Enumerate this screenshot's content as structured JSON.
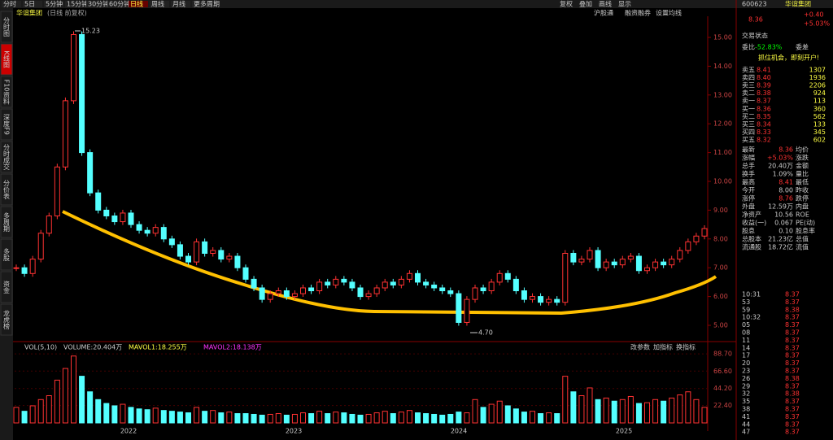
{
  "toolbar": {
    "periods": [
      "分时",
      "5日",
      "5分钟",
      "15分钟",
      "30分钟",
      "60分钟",
      "日线",
      "周线",
      "月线",
      "更多周期"
    ],
    "tools": [
      "复权",
      "叠加",
      "画线",
      "显示"
    ]
  },
  "sidebar": [
    "分时图",
    "K线图",
    "F10资料",
    "深度F9",
    "分时成交",
    "分价表",
    "多周期",
    "多股",
    "资金",
    "龙虎榜"
  ],
  "chart_header": {
    "name": "华谊集团",
    "mode": "(日线 前复权)",
    "buttons": [
      "沪股通",
      "融资融券",
      "设置均线"
    ]
  },
  "chart_data": {
    "type": "candlestick",
    "closes": [
      7.0,
      6.8,
      7.3,
      8.2,
      8.8,
      10.5,
      12.8,
      15.1,
      11.0,
      9.6,
      9.0,
      8.8,
      8.6,
      8.9,
      8.5,
      8.3,
      8.2,
      8.4,
      8.0,
      7.8,
      7.4,
      7.2,
      7.9,
      7.5,
      7.6,
      7.3,
      7.4,
      7.0,
      6.6,
      6.3,
      5.9,
      6.1,
      6.2,
      6.0,
      6.1,
      6.3,
      6.2,
      6.5,
      6.4,
      6.6,
      6.5,
      6.3,
      6.0,
      6.1,
      6.3,
      6.5,
      6.4,
      6.6,
      6.8,
      6.5,
      6.4,
      6.3,
      6.2,
      6.1,
      5.1,
      5.9,
      6.3,
      6.2,
      6.5,
      6.8,
      6.6,
      6.2,
      5.9,
      6.0,
      5.8,
      5.9,
      5.8,
      7.5,
      7.2,
      7.3,
      7.6,
      7.0,
      7.2,
      7.1,
      7.3,
      7.4,
      6.9,
      7.0,
      7.2,
      7.1,
      7.3,
      7.6,
      7.9,
      8.1,
      8.36
    ],
    "volumes": [
      20,
      15,
      22,
      30,
      35,
      55,
      70,
      86,
      60,
      40,
      30,
      25,
      22,
      24,
      20,
      18,
      17,
      19,
      16,
      15,
      14,
      13,
      20,
      15,
      16,
      13,
      14,
      12,
      12,
      11,
      10,
      11,
      12,
      10,
      11,
      13,
      12,
      15,
      12,
      14,
      13,
      11,
      10,
      11,
      13,
      15,
      12,
      14,
      16,
      13,
      12,
      11,
      10,
      11,
      14,
      13,
      30,
      20,
      24,
      28,
      22,
      18,
      14,
      15,
      12,
      13,
      12,
      60,
      40,
      35,
      45,
      30,
      32,
      28,
      30,
      34,
      25,
      26,
      30,
      28,
      32,
      36,
      40,
      30,
      20
    ],
    "ylim": [
      4.6,
      15.4
    ],
    "yticks": [
      {
        "value": 5,
        "label": "5.00"
      },
      {
        "value": 6,
        "label": "6.00"
      },
      {
        "value": 7,
        "label": "7.00"
      },
      {
        "value": 8,
        "label": "8.00"
      },
      {
        "value": 9,
        "label": "9.00"
      },
      {
        "value": 10,
        "label": "10.00"
      },
      {
        "value": 11,
        "label": "11.00"
      },
      {
        "value": 12,
        "label": "12.00"
      },
      {
        "value": 13,
        "label": "13.00"
      },
      {
        "value": 14,
        "label": "14.00"
      },
      {
        "value": 15,
        "label": "15.00"
      }
    ],
    "vlim": [
      0,
      92
    ],
    "vticks": [
      {
        "value": 22.4,
        "label": "22.40"
      },
      {
        "value": 44.2,
        "label": "44.20"
      },
      {
        "value": 66.6,
        "label": "66.60"
      },
      {
        "value": 88.7,
        "label": "88.70"
      }
    ],
    "years": [
      "2022",
      "2023",
      "2024",
      "2025"
    ],
    "high_label": "15.23",
    "low_label": "4.70",
    "vol_legend": [
      "VOL(5,10)",
      "VOLUME:20.404万",
      "MAVOL1:18.255万",
      "MAVOL2:18.138万"
    ],
    "vol_buttons": [
      "改参数",
      "加指标",
      "换指标"
    ]
  },
  "quote": {
    "code": "600623",
    "name": "华谊集团",
    "price": "8.36",
    "change": "+0.40",
    "pct": "+5.03%",
    "status": "交易状态",
    "ratio_label": "委比",
    "ratio": "-52.83%",
    "diff_label": "委差",
    "promo": "抓住机会，即刻开户!"
  },
  "sells": [
    [
      "卖五",
      "8.41",
      "1307"
    ],
    [
      "卖四",
      "8.40",
      "1936"
    ],
    [
      "卖三",
      "8.39",
      "2206"
    ],
    [
      "卖二",
      "8.38",
      "924"
    ],
    [
      "卖一",
      "8.37",
      "113"
    ]
  ],
  "buys": [
    [
      "买一",
      "8.36",
      "360"
    ],
    [
      "买二",
      "8.35",
      "562"
    ],
    [
      "买三",
      "8.34",
      "133"
    ],
    [
      "买四",
      "8.33",
      "345"
    ],
    [
      "买五",
      "8.32",
      "602"
    ]
  ],
  "stats": [
    [
      "最新",
      "8.36",
      "均价"
    ],
    [
      "涨幅",
      "+5.03%",
      "涨跌"
    ],
    [
      "总手",
      "20.40万",
      "金额"
    ],
    [
      "换手",
      "1.09%",
      "量比"
    ],
    [
      "最高",
      "8.41",
      "最低"
    ],
    [
      "今开",
      "8.00",
      "昨收"
    ],
    [
      "涨停",
      "8.76",
      "跌停"
    ],
    [
      "外盘",
      "12.59万",
      "内盘"
    ],
    [
      "净资产",
      "10.56",
      "ROE"
    ],
    [
      "收益(一)",
      "0.067",
      "PE(动)"
    ],
    [
      "股息",
      "0.10",
      "股息率"
    ],
    [
      "总股本",
      "21.23亿",
      "总值"
    ],
    [
      "流通股",
      "18.72亿",
      "流值"
    ]
  ],
  "trades": [
    [
      "10:31",
      "8.37"
    ],
    [
      "53",
      "8.37"
    ],
    [
      "59",
      "8.38"
    ],
    [
      "10:32",
      "8.37"
    ],
    [
      "05",
      "8.37"
    ],
    [
      "08",
      "8.37"
    ],
    [
      "11",
      "8.37"
    ],
    [
      "14",
      "8.37"
    ],
    [
      "17",
      "8.37"
    ],
    [
      "20",
      "8.37"
    ],
    [
      "23",
      "8.37"
    ],
    [
      "26",
      "8.38"
    ],
    [
      "29",
      "8.37"
    ],
    [
      "32",
      "8.38"
    ],
    [
      "35",
      "8.37"
    ],
    [
      "38",
      "8.37"
    ],
    [
      "41",
      "8.37"
    ],
    [
      "44",
      "8.37"
    ],
    [
      "47",
      "8.37"
    ]
  ]
}
